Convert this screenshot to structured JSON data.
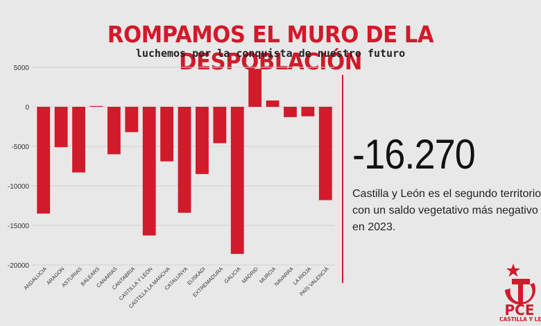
{
  "header": {
    "title": "ROMPAMOS EL MURO DE LA DESPOBLACIÓN",
    "subtitle": "luchemos por la conquista de nuestro futuro"
  },
  "highlight": {
    "value": "-16.270",
    "description_lines": [
      "Castilla y León es el segundo territorio",
      "con un saldo vegetativo más negativo",
      "en 2023."
    ]
  },
  "logo": {
    "text": "PCE",
    "subtext": "CASTILLA Y LEÓN",
    "icon": "hammer-sickle-star-icon"
  },
  "colors": {
    "accent": "#d11a2a",
    "bar": "#d11a2a"
  },
  "chart_data": {
    "type": "bar",
    "categories": [
      "ANDALUCIA",
      "ARAGON",
      "ASTURIAS",
      "BALEARS",
      "CANARIAS",
      "CANTABRIA",
      "CASTILLA Y LEON",
      "CASTILLA LA MANCHA",
      "CATALUNYA",
      "EUSKADI",
      "EXTREMADURA",
      "GALICIA",
      "MADRID",
      "MURCIA",
      "NAVARRA",
      "LA RIOJA",
      "PAÍS VALENCIÀ"
    ],
    "values": [
      -13500,
      -5100,
      -8300,
      100,
      -6000,
      -3200,
      -16270,
      -6900,
      -13400,
      -8500,
      -4600,
      -18600,
      4800,
      800,
      -1300,
      -1200,
      -11800
    ],
    "yticks": [
      5000,
      0,
      -5000,
      -10000,
      -15000,
      -20000
    ],
    "ytick_labels": [
      "5000",
      "0",
      "-5000",
      "-10000",
      "-15000",
      "-20000"
    ],
    "ylim": [
      -20000,
      5000
    ],
    "grid": true
  }
}
